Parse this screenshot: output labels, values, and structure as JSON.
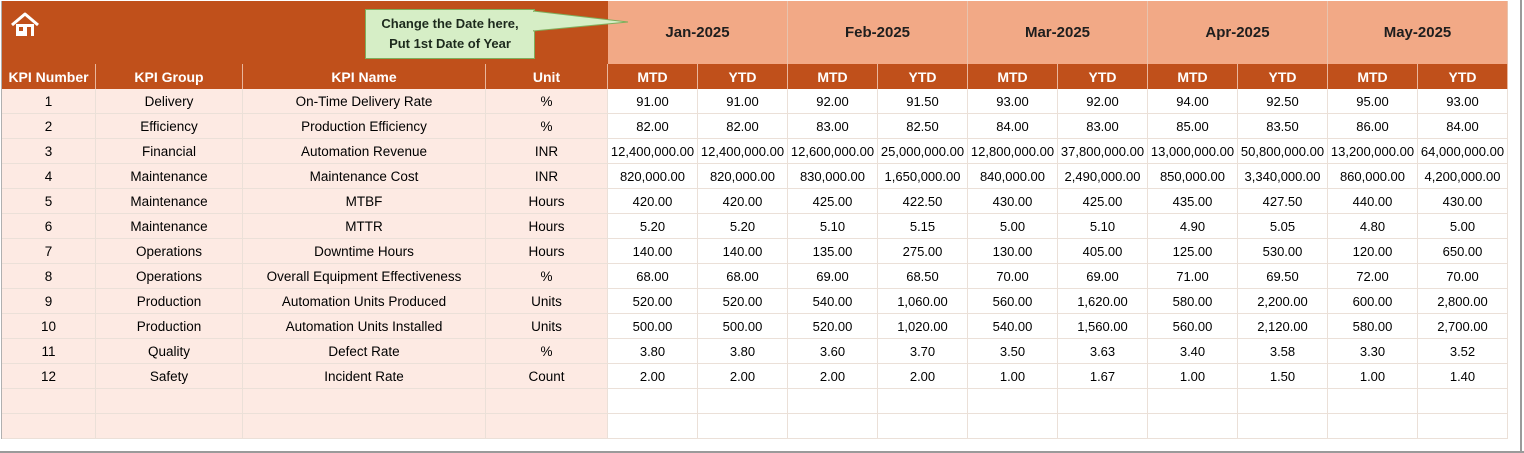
{
  "callout": {
    "line1": "Change the Date here,",
    "line2": "Put 1st Date of Year"
  },
  "icons": {
    "home": "home-icon"
  },
  "colors": {
    "header_bg": "#c0501b",
    "month_bg": "#f2a986",
    "left_cell_bg": "#fdeae3",
    "callout_bg": "#d6eec6"
  },
  "months": [
    "Jan-2025",
    "Feb-2025",
    "Mar-2025",
    "Apr-2025",
    "May-2025"
  ],
  "columns": {
    "kpi_number": "KPI Number",
    "kpi_group": "KPI Group",
    "kpi_name": "KPI Name",
    "unit": "Unit",
    "mtd": "MTD",
    "ytd": "YTD"
  },
  "rows": [
    {
      "num": "1",
      "group": "Delivery",
      "name": "On-Time Delivery Rate",
      "unit": "%",
      "values": [
        "91.00",
        "91.00",
        "92.00",
        "91.50",
        "93.00",
        "92.00",
        "94.00",
        "92.50",
        "95.00",
        "93.00"
      ]
    },
    {
      "num": "2",
      "group": "Efficiency",
      "name": "Production Efficiency",
      "unit": "%",
      "values": [
        "82.00",
        "82.00",
        "83.00",
        "82.50",
        "84.00",
        "83.00",
        "85.00",
        "83.50",
        "86.00",
        "84.00"
      ]
    },
    {
      "num": "3",
      "group": "Financial",
      "name": "Automation Revenue",
      "unit": "INR",
      "values": [
        "12,400,000.00",
        "12,400,000.00",
        "12,600,000.00",
        "25,000,000.00",
        "12,800,000.00",
        "37,800,000.00",
        "13,000,000.00",
        "50,800,000.00",
        "13,200,000.00",
        "64,000,000.00"
      ]
    },
    {
      "num": "4",
      "group": "Maintenance",
      "name": "Maintenance Cost",
      "unit": "INR",
      "values": [
        "820,000.00",
        "820,000.00",
        "830,000.00",
        "1,650,000.00",
        "840,000.00",
        "2,490,000.00",
        "850,000.00",
        "3,340,000.00",
        "860,000.00",
        "4,200,000.00"
      ]
    },
    {
      "num": "5",
      "group": "Maintenance",
      "name": "MTBF",
      "unit": "Hours",
      "values": [
        "420.00",
        "420.00",
        "425.00",
        "422.50",
        "430.00",
        "425.00",
        "435.00",
        "427.50",
        "440.00",
        "430.00"
      ]
    },
    {
      "num": "6",
      "group": "Maintenance",
      "name": "MTTR",
      "unit": "Hours",
      "values": [
        "5.20",
        "5.20",
        "5.10",
        "5.15",
        "5.00",
        "5.10",
        "4.90",
        "5.05",
        "4.80",
        "5.00"
      ]
    },
    {
      "num": "7",
      "group": "Operations",
      "name": "Downtime Hours",
      "unit": "Hours",
      "values": [
        "140.00",
        "140.00",
        "135.00",
        "275.00",
        "130.00",
        "405.00",
        "125.00",
        "530.00",
        "120.00",
        "650.00"
      ]
    },
    {
      "num": "8",
      "group": "Operations",
      "name": "Overall Equipment Effectiveness",
      "unit": "%",
      "values": [
        "68.00",
        "68.00",
        "69.00",
        "68.50",
        "70.00",
        "69.00",
        "71.00",
        "69.50",
        "72.00",
        "70.00"
      ]
    },
    {
      "num": "9",
      "group": "Production",
      "name": "Automation Units Produced",
      "unit": "Units",
      "values": [
        "520.00",
        "520.00",
        "540.00",
        "1,060.00",
        "560.00",
        "1,620.00",
        "580.00",
        "2,200.00",
        "600.00",
        "2,800.00"
      ]
    },
    {
      "num": "10",
      "group": "Production",
      "name": "Automation Units Installed",
      "unit": "Units",
      "values": [
        "500.00",
        "500.00",
        "520.00",
        "1,020.00",
        "540.00",
        "1,560.00",
        "560.00",
        "2,120.00",
        "580.00",
        "2,700.00"
      ]
    },
    {
      "num": "11",
      "group": "Quality",
      "name": "Defect Rate",
      "unit": "%",
      "values": [
        "3.80",
        "3.80",
        "3.60",
        "3.70",
        "3.50",
        "3.63",
        "3.40",
        "3.58",
        "3.30",
        "3.52"
      ]
    },
    {
      "num": "12",
      "group": "Safety",
      "name": "Incident Rate",
      "unit": "Count",
      "values": [
        "2.00",
        "2.00",
        "2.00",
        "2.00",
        "1.00",
        "1.67",
        "1.00",
        "1.50",
        "1.00",
        "1.40"
      ]
    },
    {
      "num": "",
      "group": "",
      "name": "",
      "unit": "",
      "values": [
        "",
        "",
        "",
        "",
        "",
        "",
        "",
        "",
        "",
        ""
      ]
    },
    {
      "num": "",
      "group": "",
      "name": "",
      "unit": "",
      "values": [
        "",
        "",
        "",
        "",
        "",
        "",
        "",
        "",
        "",
        ""
      ]
    }
  ]
}
